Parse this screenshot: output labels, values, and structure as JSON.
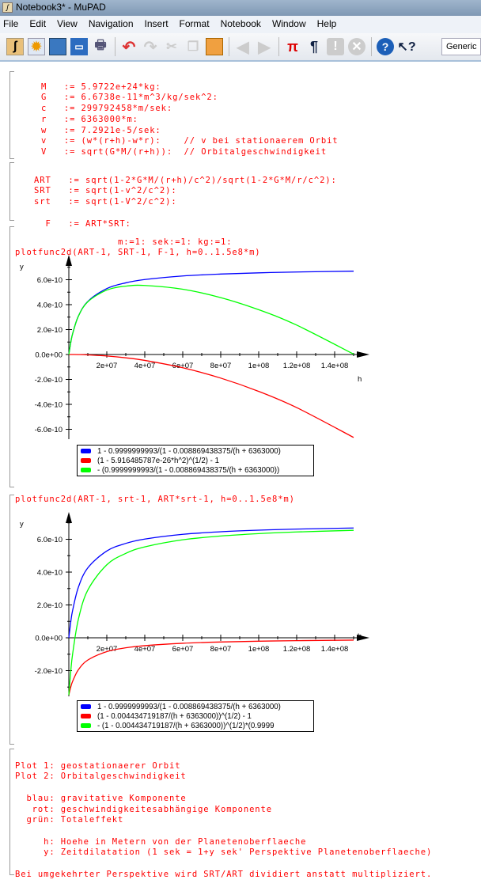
{
  "window": {
    "title": "Notebook3* - MuPAD"
  },
  "menu": [
    "File",
    "Edit",
    "View",
    "Navigation",
    "Insert",
    "Format",
    "Notebook",
    "Window",
    "Help"
  ],
  "toolbar": {
    "icons": [
      "new-notebook-icon",
      "new-editor-icon",
      "open-icon",
      "save-icon",
      "print-icon",
      "undo-icon",
      "redo-icon",
      "cut-icon",
      "copy-icon",
      "paste-icon",
      "back-icon",
      "forward-icon",
      "insert-calculation-icon",
      "insert-text-icon",
      "evaluate-icon",
      "stop-icon",
      "help-icon",
      "context-help-icon"
    ],
    "style_select": "Generic"
  },
  "cells": {
    "constants": [
      "M   := 5.9722e+24*kg:",
      "G   := 6.6738e-11*m^3/kg/sek^2:",
      "c   := 299792458*m/sek:",
      "r   := 6363000*m:",
      "w   := 7.2921e-5/sek:",
      "",
      "v   := (w*(r+h)-w*r):    // v bei stationaerem Orbit",
      "V   := sqrt(G*M/(r+h)):  // Orbitalgeschwindigkeit"
    ],
    "factors": [
      "ART   := sqrt(1-2*G*M/(r+h)/c^2)/sqrt(1-2*G*M/r/c^2):",
      "SRT   := sqrt(1-v^2/c^2):",
      "srt   := sqrt(1-V^2/c^2):",
      "",
      "  F   := ART*SRT:"
    ],
    "plot1_cmd": [
      "                  m:=1: sek:=1: kg:=1:",
      "plotfunc2d(ART-1, SRT-1, F-1, h=0..1.5e8*m)"
    ],
    "plot2_cmd": "plotfunc2d(ART-1, srt-1, ART*srt-1, h=0..1.5e8*m)",
    "notes": [
      "Plot 1: geostationaerer Orbit",
      "Plot 2: Orbitalgeschwindigkeit",
      "",
      "  blau: gravitative Komponente",
      "   rot: geschwindigkeitesabhängige Komponente",
      "  grün: Totaleffekt",
      "",
      "     h: Hoehe in Metern von der Planetenoberflaeche",
      "     y: Zeitdilatation (1 sek = 1+y sek' Perspektive Planetenoberflaeche)",
      "",
      "Bei umgekehrter Perspektive wird SRT/ART dividiert anstatt multipliziert."
    ]
  },
  "chart_data": [
    {
      "type": "line",
      "xlabel": "h",
      "ylabel": "y",
      "xlim": [
        0,
        150000000.0
      ],
      "ylim": [
        -6.6e-10,
        7.2e-10
      ],
      "x_ticks": [
        "2e+07",
        "4e+07",
        "6e+07",
        "8e+07",
        "1e+08",
        "1.2e+08",
        "1.4e+08"
      ],
      "y_ticks": [
        "6.0e-10",
        "4.0e-10",
        "2.0e-10",
        "0.0e+00",
        "-2.0e-10",
        "-4.0e-10",
        "-6.0e-10"
      ],
      "x": [
        0,
        1000000.0,
        2000000.0,
        5000000.0,
        10000000.0,
        20000000.0,
        30000000.0,
        40000000.0,
        60000000.0,
        80000000.0,
        100000000.0,
        120000000.0,
        150000000.0
      ],
      "series": [
        {
          "name": "1 - 0.9999999993/(1 - 0.008869438375/(h + 6363000)",
          "color": "#0000ff",
          "values": [
            0,
            9.47e-11,
            1.667e-10,
            3.067e-10,
            4.26e-10,
            5.288e-10,
            5.75e-10,
            6.014e-10,
            6.302e-10,
            6.456e-10,
            6.553e-10,
            6.619e-10,
            6.686e-10
          ]
        },
        {
          "name": "(1 - 5.916485787e-26*h^2)^(1/2) - 1",
          "color": "#ff0000",
          "values": [
            0,
            -3e-14,
            -1.2e-13,
            -7.4e-13,
            -2.96e-12,
            -1.18e-11,
            -2.66e-11,
            -4.73e-11,
            -1.065e-10,
            -1.893e-10,
            -2.958e-10,
            -4.26e-10,
            -6.656e-10
          ]
        },
        {
          "name": "- (0.9999999993/(1 - 0.008869438375/(h + 6363000))",
          "color": "#00ff00",
          "values": [
            0,
            9.47e-11,
            1.666e-10,
            3.06e-10,
            4.23e-10,
            5.17e-10,
            5.484e-10,
            5.541e-10,
            5.237e-10,
            4.563e-10,
            3.595e-10,
            2.359e-10,
            3e-12
          ]
        }
      ]
    },
    {
      "type": "line",
      "xlabel": "h",
      "ylabel": "y",
      "xlim": [
        0,
        150000000.0
      ],
      "ylim": [
        -3.5e-10,
        7.2e-10
      ],
      "x_ticks": [
        "2e+07",
        "4e+07",
        "6e+07",
        "8e+07",
        "1e+08",
        "1.2e+08",
        "1.4e+08"
      ],
      "y_ticks": [
        "6.0e-10",
        "4.0e-10",
        "2.0e-10",
        "0.0e+00",
        "-2.0e-10"
      ],
      "x": [
        0,
        1000000.0,
        2000000.0,
        5000000.0,
        10000000.0,
        20000000.0,
        30000000.0,
        40000000.0,
        60000000.0,
        80000000.0,
        100000000.0,
        120000000.0,
        150000000.0
      ],
      "series": [
        {
          "name": "1 - 0.9999999993/(1 - 0.008869438375/(h + 6363000)",
          "color": "#0000ff",
          "values": [
            0,
            9.47e-11,
            1.667e-10,
            3.067e-10,
            4.26e-10,
            5.288e-10,
            5.75e-10,
            6.014e-10,
            6.302e-10,
            6.456e-10,
            6.553e-10,
            6.619e-10,
            6.686e-10
          ]
        },
        {
          "name": "(1 - 0.004434719187/(h + 6363000))^(1/2) - 1",
          "color": "#ff0000",
          "values": [
            -3.485e-10,
            -3.011e-10,
            -2.651e-10,
            -1.951e-10,
            -1.355e-10,
            -8.41e-11,
            -6.1e-11,
            -4.78e-11,
            -3.34e-11,
            -2.57e-11,
            -2.08e-11,
            -1.75e-11,
            -1.42e-11
          ]
        },
        {
          "name": "- (1 - 0.004434719187/(h + 6363000))^(1/2)*(0.9999",
          "color": "#00ff00",
          "values": [
            -3.485e-10,
            -2.064e-10,
            -9.84e-11,
            1.116e-10,
            2.905e-10,
            4.447e-10,
            5.14e-10,
            5.536e-10,
            5.968e-10,
            6.199e-10,
            6.345e-10,
            6.444e-10,
            6.544e-10
          ]
        }
      ]
    }
  ]
}
